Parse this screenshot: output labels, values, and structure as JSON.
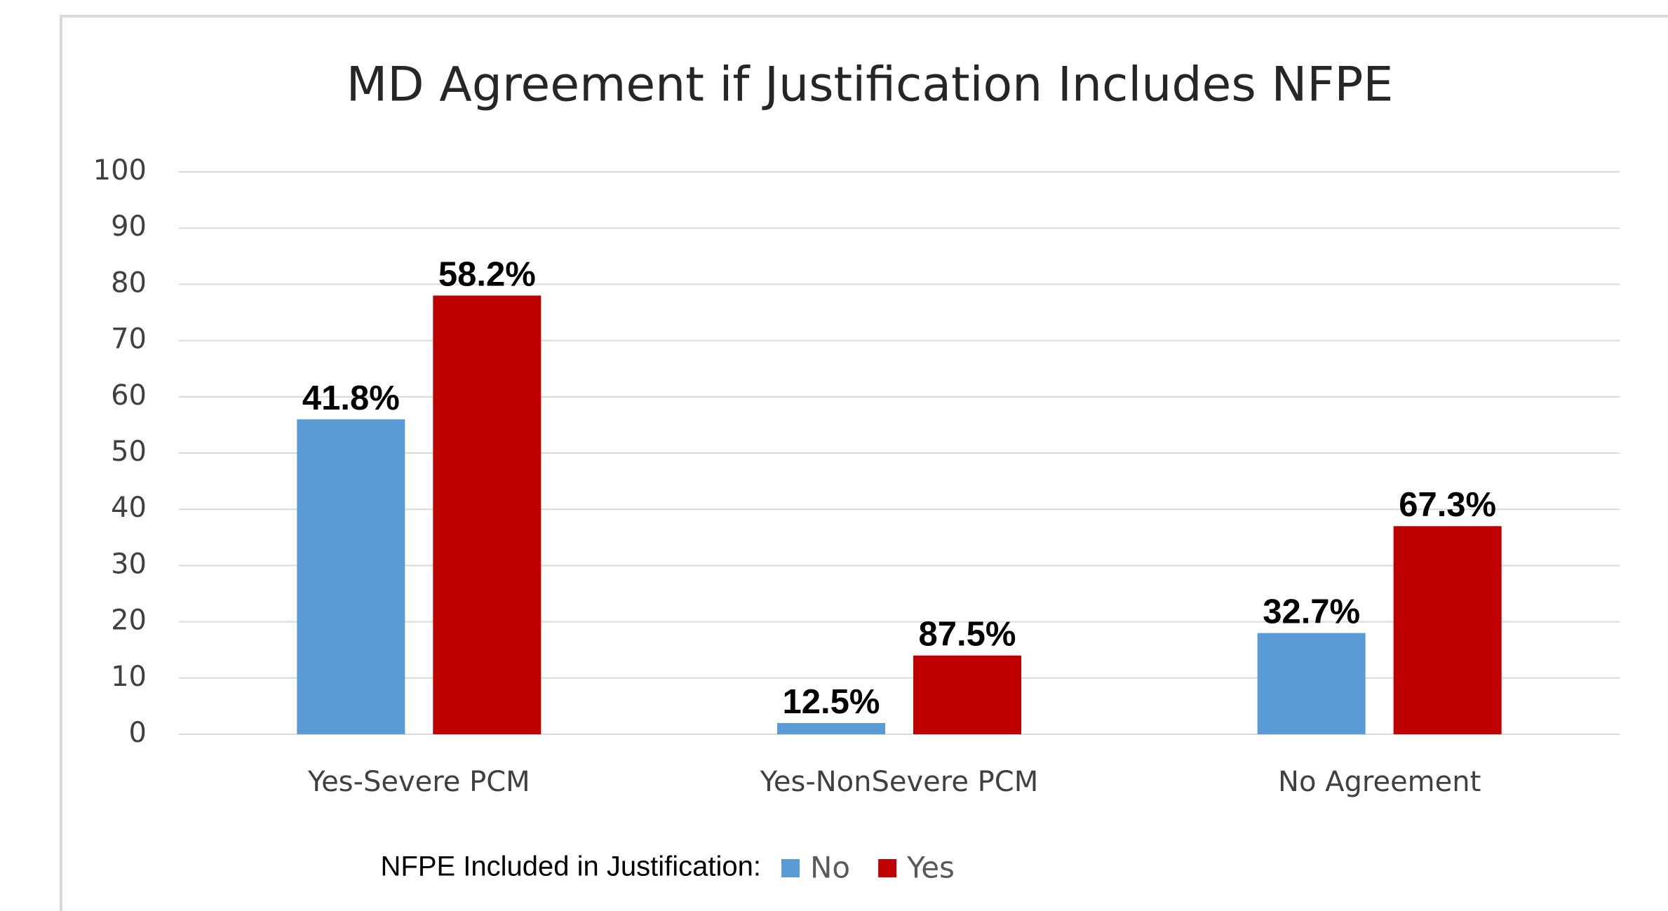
{
  "chart_data": {
    "type": "bar",
    "title": "MD Agreement if Justification Includes NFPE",
    "categories": [
      "Yes-Severe PCM",
      "Yes-NonSevere PCM",
      "No Agreement"
    ],
    "series": [
      {
        "name": "No",
        "color": "#5b9bd5",
        "values": [
          56,
          2,
          18
        ],
        "data_labels": [
          "41.8%",
          "12.5%",
          "32.7%"
        ]
      },
      {
        "name": "Yes",
        "color": "#c00000",
        "values": [
          78,
          14,
          37
        ],
        "data_labels": [
          "58.2%",
          "87.5%",
          "67.3%"
        ]
      }
    ],
    "legend_title": "NFPE Included in Justification:",
    "legend": "bottom",
    "ylim": [
      0,
      100
    ],
    "yticks": [
      0,
      10,
      20,
      30,
      40,
      50,
      60,
      70,
      80,
      90,
      100
    ],
    "grid": true
  }
}
